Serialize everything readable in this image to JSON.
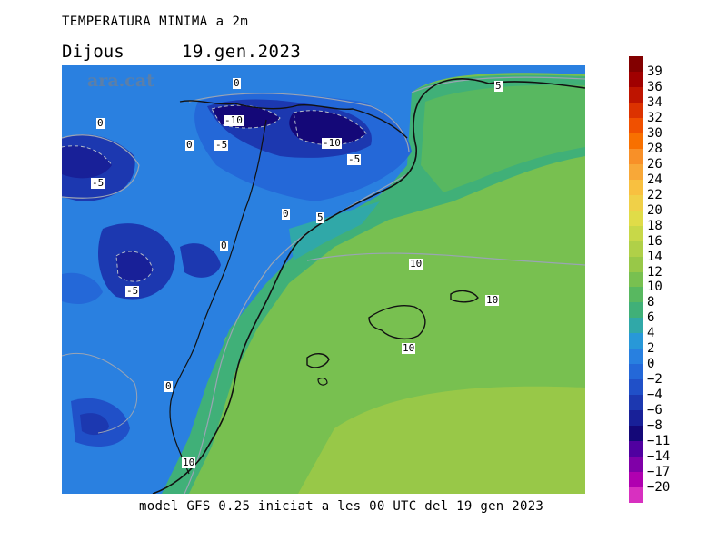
{
  "header": {
    "title": "TEMPERATURA MINIMA a 2m",
    "day": "Dijous",
    "date": "19.gen.2023"
  },
  "footer": "model GFS 0.25 iniciat a les 00 UTC del 19 gen 2023",
  "map": {
    "brand": "ara.cat",
    "contour_labels": [
      "0",
      "-10",
      "0",
      "-5",
      "-10",
      "-5",
      "-5",
      "0",
      "5",
      "0",
      "5",
      "10",
      "10",
      "10",
      "-5",
      "0",
      "10",
      "0"
    ]
  },
  "legend": {
    "values": [
      "39",
      "36",
      "34",
      "32",
      "30",
      "28",
      "26",
      "24",
      "22",
      "20",
      "18",
      "16",
      "14",
      "12",
      "10",
      "8",
      "6",
      "4",
      "2",
      "0",
      "−2",
      "−4",
      "−6",
      "−8",
      "−11",
      "−14",
      "−17",
      "−20"
    ],
    "colors": [
      "#820000",
      "#a00000",
      "#be1400",
      "#dc3200",
      "#f05000",
      "#f87000",
      "#f89028",
      "#f8a838",
      "#f8c040",
      "#f0d048",
      "#e0dc48",
      "#c8d848",
      "#b0d048",
      "#98c848",
      "#78c050",
      "#58b860",
      "#40b078",
      "#30a8a8",
      "#2898d8",
      "#2880e0",
      "#2468d8",
      "#2050c8",
      "#1c38b0",
      "#182098",
      "#140878",
      "#5000a0",
      "#8000a8",
      "#b000b0",
      "#d830c0"
    ]
  }
}
